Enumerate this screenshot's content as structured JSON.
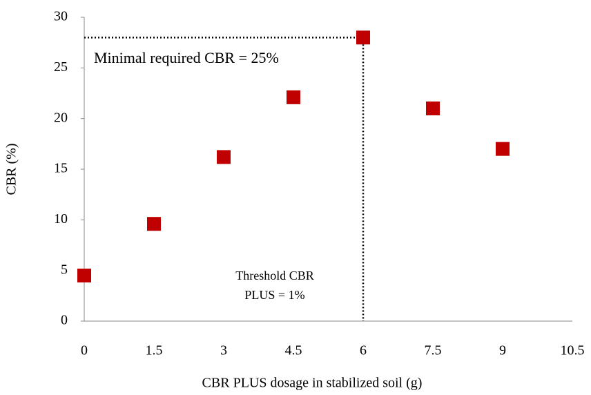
{
  "chart_data": {
    "type": "scatter",
    "x_label": "CBR PLUS  dosage in stabilized soil (g)",
    "y_label": "CBR (%)",
    "x": [
      0,
      1.5,
      3,
      4.5,
      6,
      7.5,
      9
    ],
    "values": [
      4.5,
      9.6,
      16.2,
      22.1,
      28,
      21,
      17
    ],
    "color": "#c00000",
    "xlim": [
      0,
      10.5
    ],
    "xticks": [
      0,
      1.5,
      3,
      4.5,
      6,
      7.5,
      9,
      10.5
    ],
    "ylim": [
      0,
      30
    ],
    "yticks": [
      0,
      5,
      10,
      15,
      20,
      25,
      30
    ],
    "grid": false,
    "annotations": [
      {
        "lines": [
          "Minimal required CBR = 25%"
        ]
      },
      {
        "lines": [
          "Threshold CBR",
          "PLUS = 1%"
        ]
      }
    ]
  }
}
